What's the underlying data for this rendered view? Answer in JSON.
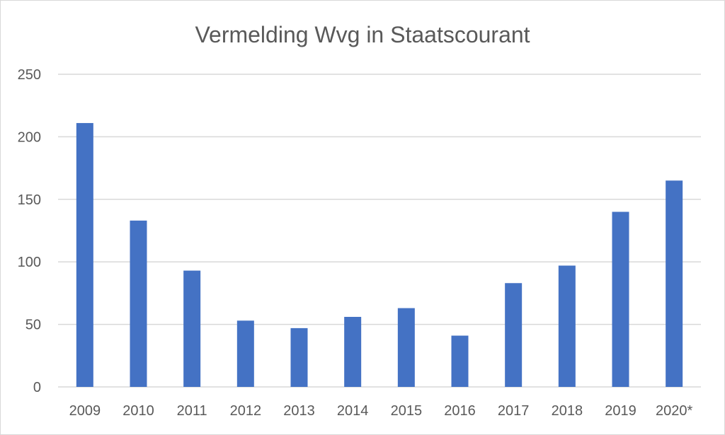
{
  "chart_data": {
    "type": "bar",
    "title": "Vermelding Wvg in Staatscourant",
    "categories": [
      "2009",
      "2010",
      "2011",
      "2012",
      "2013",
      "2014",
      "2015",
      "2016",
      "2017",
      "2018",
      "2019",
      "2020*"
    ],
    "series": [
      {
        "values": [
          211,
          133,
          93,
          53,
          47,
          56,
          63,
          41,
          83,
          97,
          140,
          165
        ],
        "color": "#4472c4"
      }
    ],
    "yticks": [
      "0",
      "50",
      "100",
      "150",
      "200",
      "250"
    ],
    "ylim": [
      0,
      250
    ],
    "grid": true,
    "legend": "none",
    "colors": {
      "bar": "#4472c4",
      "grid": "#d9d9d9",
      "text": "#595959"
    }
  }
}
